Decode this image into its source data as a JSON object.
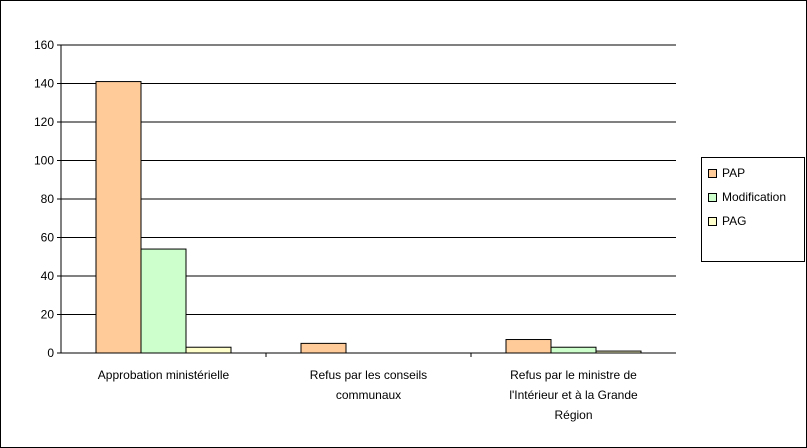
{
  "chart_data": {
    "type": "bar",
    "categories": [
      [
        "Approbation ministérielle"
      ],
      [
        "Refus par les conseils",
        "communaux"
      ],
      [
        "Refus par le ministre de",
        "l'Intérieur et à la Grande",
        "Région"
      ]
    ],
    "series": [
      {
        "name": "PAP",
        "values": [
          141,
          5,
          7
        ],
        "color": "#FFCC99"
      },
      {
        "name": "Modification",
        "values": [
          54,
          0,
          3
        ],
        "color": "#CCFFCC"
      },
      {
        "name": "PAG",
        "values": [
          3,
          0,
          1
        ],
        "color": "#FFFFCC"
      }
    ],
    "ylim": [
      0,
      160
    ],
    "yticks": [
      0,
      20,
      40,
      60,
      80,
      100,
      120,
      140,
      160
    ],
    "grid": true,
    "legend_position": "right"
  }
}
